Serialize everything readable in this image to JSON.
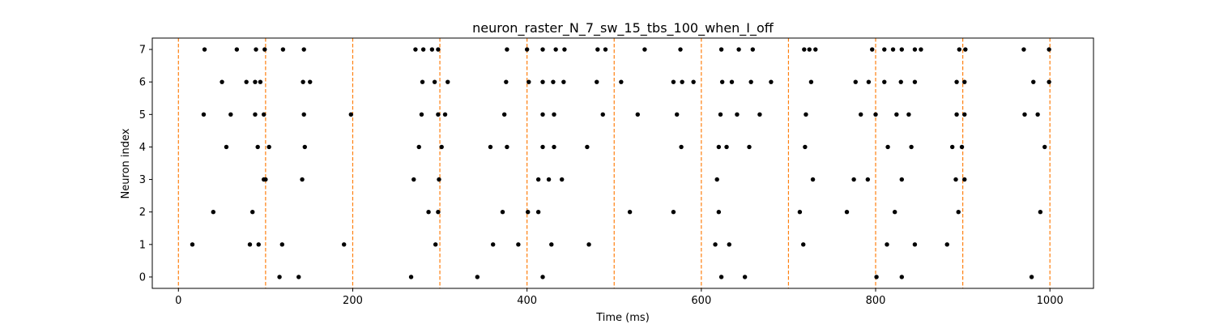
{
  "chart_data": {
    "type": "scatter",
    "title": "neuron_raster_N_7_sw_15_tbs_100_when_I_off",
    "xlabel": "Time (ms)",
    "ylabel": "Neuron index",
    "xlim": [
      -30,
      1050
    ],
    "ylim": [
      -0.35,
      7.35
    ],
    "xticks": [
      0,
      200,
      400,
      600,
      800,
      1000
    ],
    "yticks": [
      0,
      1,
      2,
      3,
      4,
      5,
      6,
      7
    ],
    "grid": false,
    "marker_color": "#000000",
    "vlines": {
      "positions": [
        0,
        100,
        200,
        300,
        400,
        500,
        600,
        700,
        800,
        900,
        1000
      ],
      "color": "#ff7f0e",
      "style": "dashed"
    },
    "series": [
      {
        "neuron": 0,
        "x": [
          116,
          138,
          267,
          343,
          418,
          623,
          650,
          801,
          830,
          979
        ]
      },
      {
        "neuron": 1,
        "x": [
          16,
          82,
          92,
          119,
          190,
          295,
          361,
          390,
          428,
          471,
          616,
          632,
          717,
          813,
          845,
          882
        ]
      },
      {
        "neuron": 2,
        "x": [
          40,
          85,
          287,
          298,
          372,
          401,
          413,
          518,
          568,
          620,
          713,
          767,
          822,
          895,
          989
        ]
      },
      {
        "neuron": 3,
        "x": [
          98,
          100,
          142,
          270,
          299,
          413,
          425,
          440,
          618,
          728,
          775,
          791,
          830,
          892,
          902
        ]
      },
      {
        "neuron": 4,
        "x": [
          55,
          91,
          104,
          145,
          276,
          302,
          358,
          377,
          418,
          431,
          469,
          577,
          620,
          629,
          655,
          719,
          814,
          841,
          888,
          899,
          994
        ]
      },
      {
        "neuron": 5,
        "x": [
          29,
          60,
          88,
          98,
          144,
          198,
          279,
          298,
          306,
          374,
          418,
          431,
          487,
          527,
          572,
          622,
          641,
          667,
          720,
          783,
          800,
          824,
          838,
          893,
          902,
          971,
          986
        ]
      },
      {
        "neuron": 6,
        "x": [
          50,
          78,
          88,
          94,
          143,
          151,
          280,
          294,
          309,
          376,
          402,
          418,
          430,
          442,
          480,
          508,
          568,
          578,
          591,
          624,
          635,
          657,
          680,
          726,
          777,
          792,
          810,
          829,
          845,
          893,
          902,
          981,
          999
        ]
      },
      {
        "neuron": 7,
        "x": [
          30,
          67,
          89,
          99,
          120,
          144,
          272,
          281,
          291,
          298,
          377,
          400,
          418,
          433,
          443,
          481,
          490,
          535,
          576,
          623,
          643,
          659,
          718,
          724,
          731,
          796,
          810,
          820,
          830,
          845,
          852,
          896,
          903,
          970,
          999
        ]
      }
    ]
  }
}
